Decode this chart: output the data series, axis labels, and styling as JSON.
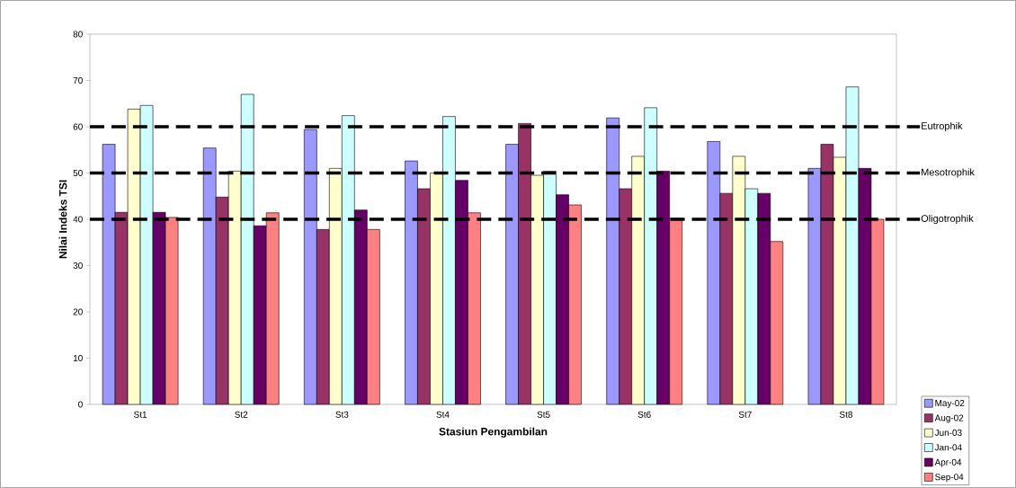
{
  "chart_data": {
    "type": "bar",
    "xlabel": "Stasiun Pengambilan",
    "ylabel": "Nilai Indeks TSI",
    "categories": [
      "St1",
      "St2",
      "St3",
      "St4",
      "St5",
      "St6",
      "St7",
      "St8"
    ],
    "series": [
      {
        "name": "May-02",
        "color": "#9999ff",
        "values": [
          56.2,
          55.4,
          59.4,
          52.6,
          56.2,
          61.9,
          56.8,
          51.0
        ]
      },
      {
        "name": "Aug-02",
        "color": "#993366",
        "values": [
          41.5,
          44.8,
          37.8,
          46.6,
          60.7,
          46.6,
          45.6,
          56.2
        ]
      },
      {
        "name": "Jun-03",
        "color": "#ffffcc",
        "values": [
          63.8,
          50.4,
          51.0,
          50.0,
          49.5,
          53.6,
          53.6,
          53.4
        ]
      },
      {
        "name": "Jan-04",
        "color": "#ccffff",
        "values": [
          64.6,
          67.0,
          62.4,
          62.2,
          50.4,
          64.1,
          46.6,
          68.6
        ]
      },
      {
        "name": "Apr-04",
        "color": "#660066",
        "values": [
          41.5,
          38.6,
          42.0,
          48.4,
          45.3,
          50.4,
          45.6,
          51.0
        ]
      },
      {
        "name": "Sep-04",
        "color": "#ff8080",
        "values": [
          40.4,
          41.4,
          37.8,
          41.4,
          43.1,
          40.2,
          35.2,
          40.0
        ]
      }
    ],
    "ylim": [
      0,
      80
    ],
    "yticks": [
      0,
      10,
      20,
      30,
      40,
      50,
      60,
      70,
      80
    ],
    "ref_lines": [
      {
        "axis": "y",
        "value": 60,
        "label": "Eutrophik",
        "color": "#000000",
        "line_style": "dashed"
      },
      {
        "axis": "y",
        "value": 50,
        "label": "Mesotrophik",
        "color": "#000000",
        "line_style": "dashed"
      },
      {
        "axis": "y",
        "value": 40,
        "label": "Oligotrophik",
        "color": "#000000",
        "line_style": "dashed"
      }
    ],
    "legend": "bottom right",
    "grid": false
  }
}
